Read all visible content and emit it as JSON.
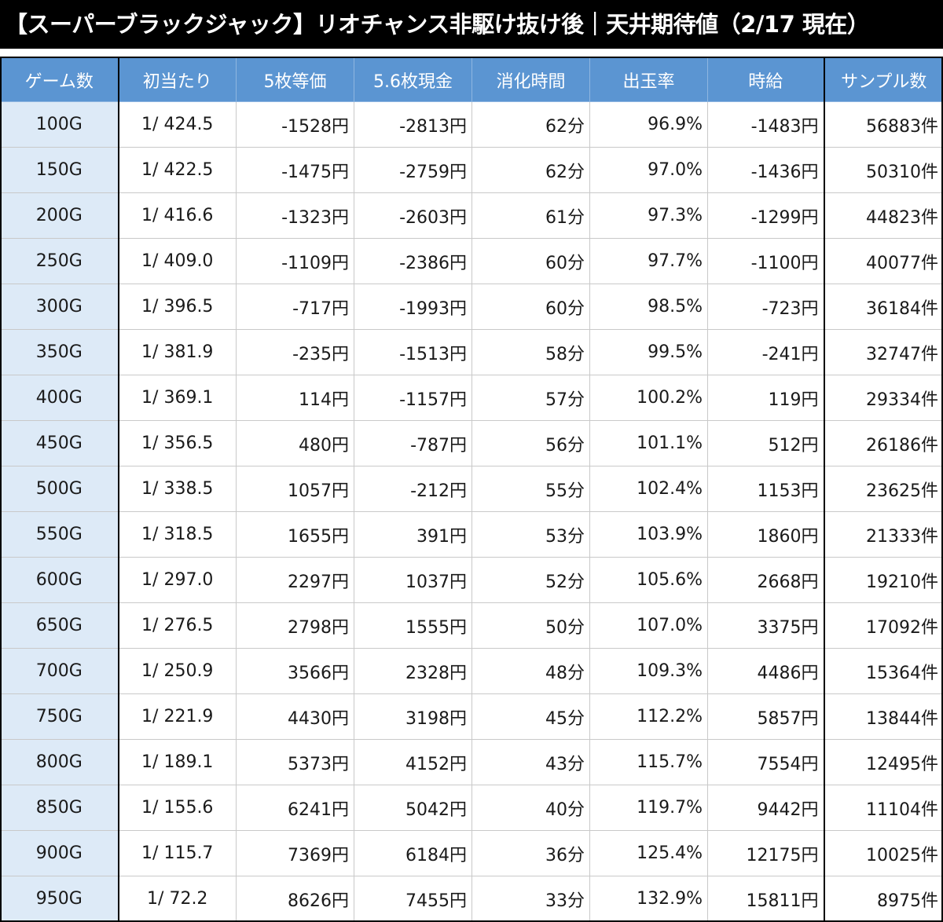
{
  "title": "【スーパーブラックジャック】リオチャンス非駆け抜け後｜天井期待値（2/17 現在）",
  "headers": [
    "ゲーム数",
    "初当たり",
    "5枚等価",
    "5.6枚現金",
    "消化時間",
    "出玉率",
    "時給",
    "サンプル数"
  ],
  "rows": [
    {
      "game": "100G",
      "hit": "1/ 424.5",
      "eq5": "-1528円",
      "cash56": "-2813円",
      "time": "62分",
      "rate": "96.9%",
      "wage": "-1483円",
      "samples": "56883件"
    },
    {
      "game": "150G",
      "hit": "1/ 422.5",
      "eq5": "-1475円",
      "cash56": "-2759円",
      "time": "62分",
      "rate": "97.0%",
      "wage": "-1436円",
      "samples": "50310件"
    },
    {
      "game": "200G",
      "hit": "1/ 416.6",
      "eq5": "-1323円",
      "cash56": "-2603円",
      "time": "61分",
      "rate": "97.3%",
      "wage": "-1299円",
      "samples": "44823件"
    },
    {
      "game": "250G",
      "hit": "1/ 409.0",
      "eq5": "-1109円",
      "cash56": "-2386円",
      "time": "60分",
      "rate": "97.7%",
      "wage": "-1100円",
      "samples": "40077件"
    },
    {
      "game": "300G",
      "hit": "1/ 396.5",
      "eq5": "-717円",
      "cash56": "-1993円",
      "time": "60分",
      "rate": "98.5%",
      "wage": "-723円",
      "samples": "36184件"
    },
    {
      "game": "350G",
      "hit": "1/ 381.9",
      "eq5": "-235円",
      "cash56": "-1513円",
      "time": "58分",
      "rate": "99.5%",
      "wage": "-241円",
      "samples": "32747件"
    },
    {
      "game": "400G",
      "hit": "1/ 369.1",
      "eq5": "114円",
      "cash56": "-1157円",
      "time": "57分",
      "rate": "100.2%",
      "wage": "119円",
      "samples": "29334件"
    },
    {
      "game": "450G",
      "hit": "1/ 356.5",
      "eq5": "480円",
      "cash56": "-787円",
      "time": "56分",
      "rate": "101.1%",
      "wage": "512円",
      "samples": "26186件"
    },
    {
      "game": "500G",
      "hit": "1/ 338.5",
      "eq5": "1057円",
      "cash56": "-212円",
      "time": "55分",
      "rate": "102.4%",
      "wage": "1153円",
      "samples": "23625件"
    },
    {
      "game": "550G",
      "hit": "1/ 318.5",
      "eq5": "1655円",
      "cash56": "391円",
      "time": "53分",
      "rate": "103.9%",
      "wage": "1860円",
      "samples": "21333件"
    },
    {
      "game": "600G",
      "hit": "1/ 297.0",
      "eq5": "2297円",
      "cash56": "1037円",
      "time": "52分",
      "rate": "105.6%",
      "wage": "2668円",
      "samples": "19210件"
    },
    {
      "game": "650G",
      "hit": "1/ 276.5",
      "eq5": "2798円",
      "cash56": "1555円",
      "time": "50分",
      "rate": "107.0%",
      "wage": "3375円",
      "samples": "17092件"
    },
    {
      "game": "700G",
      "hit": "1/ 250.9",
      "eq5": "3566円",
      "cash56": "2328円",
      "time": "48分",
      "rate": "109.3%",
      "wage": "4486円",
      "samples": "15364件"
    },
    {
      "game": "750G",
      "hit": "1/ 221.9",
      "eq5": "4430円",
      "cash56": "3198円",
      "time": "45分",
      "rate": "112.2%",
      "wage": "5857円",
      "samples": "13844件"
    },
    {
      "game": "800G",
      "hit": "1/ 189.1",
      "eq5": "5373円",
      "cash56": "4152円",
      "time": "43分",
      "rate": "115.7%",
      "wage": "7554円",
      "samples": "12495件"
    },
    {
      "game": "850G",
      "hit": "1/ 155.6",
      "eq5": "6241円",
      "cash56": "5042円",
      "time": "40分",
      "rate": "119.7%",
      "wage": "9442円",
      "samples": "11104件"
    },
    {
      "game": "900G",
      "hit": "1/ 115.7",
      "eq5": "7369円",
      "cash56": "6184円",
      "time": "36分",
      "rate": "125.4%",
      "wage": "12175円",
      "samples": "10025件"
    },
    {
      "game": "950G",
      "hit": "1/ 72.2",
      "eq5": "8626円",
      "cash56": "7455円",
      "time": "33分",
      "rate": "132.9%",
      "wage": "15811円",
      "samples": "8975件"
    }
  ],
  "colors": {
    "header_bg": "#5b95d2",
    "game_col_bg": "#ddeaf7",
    "negative": "#e0161d",
    "positive": "#1a2bc7"
  }
}
